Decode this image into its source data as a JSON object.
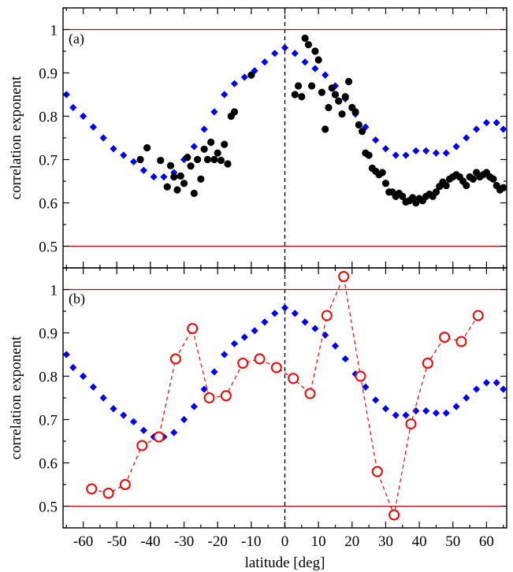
{
  "colors": {
    "model": "#0000ff",
    "data_a": "#000000",
    "data_b": "#ff0000",
    "reference": "#cc0000"
  },
  "chart_data": [
    {
      "type": "scatter",
      "panel_label": "(a)",
      "ylabel": "correlation exponent",
      "xlim": [
        -66,
        66
      ],
      "ylim": [
        0.45,
        1.05
      ],
      "xticks": [
        "-60",
        "-50",
        "-40",
        "-30",
        "-20",
        "-10",
        "0",
        "10",
        "20",
        "30",
        "40",
        "50",
        "60"
      ],
      "yticks": [
        "0.5",
        "0.6",
        "0.7",
        "0.8",
        "0.9",
        "1"
      ],
      "reference_lines_y": [
        0.5,
        1.0
      ],
      "vertical_line_x": 0,
      "series": [
        {
          "style": "blue-diamonds",
          "x": [
            -65,
            -63,
            -60,
            -57,
            -54,
            -51,
            -48,
            -45,
            -42,
            -39,
            -36,
            -33,
            -30,
            -27,
            -24,
            -21,
            -18,
            -15,
            -12,
            -9,
            -6,
            -3,
            0,
            3,
            6,
            9,
            12,
            15,
            18,
            21,
            24,
            27,
            30,
            33,
            36,
            39,
            42,
            45,
            48,
            51,
            54,
            57,
            60,
            63,
            65
          ],
          "y": [
            0.85,
            0.82,
            0.8,
            0.775,
            0.75,
            0.725,
            0.71,
            0.695,
            0.675,
            0.66,
            0.66,
            0.67,
            0.7,
            0.73,
            0.77,
            0.81,
            0.85,
            0.875,
            0.89,
            0.905,
            0.925,
            0.945,
            0.958,
            0.945,
            0.925,
            0.91,
            0.895,
            0.87,
            0.84,
            0.805,
            0.775,
            0.745,
            0.725,
            0.71,
            0.71,
            0.72,
            0.72,
            0.715,
            0.715,
            0.73,
            0.75,
            0.77,
            0.785,
            0.785,
            0.77
          ]
        },
        {
          "style": "black-circles",
          "x": [
            -43,
            -41,
            -37,
            -35,
            -34,
            -33,
            -32,
            -31,
            -30,
            -29,
            -28,
            -27,
            -26,
            -25,
            -24,
            -23,
            -22,
            -21,
            -20,
            -19,
            -18,
            -17,
            -16,
            -15,
            -10,
            3,
            4,
            5,
            6,
            7,
            8,
            9,
            10,
            11,
            12,
            13,
            14,
            15,
            16,
            17,
            18,
            19,
            20,
            21,
            22,
            23,
            24,
            25,
            26,
            27,
            28,
            29,
            30,
            31,
            32,
            33,
            34,
            35,
            36,
            37,
            38,
            39,
            40,
            41,
            42,
            43,
            44,
            45,
            46,
            47,
            48,
            49,
            50,
            51,
            52,
            53,
            54,
            55,
            56,
            57,
            58,
            59,
            60,
            61,
            62,
            63,
            64,
            65
          ],
          "y": [
            0.7,
            0.727,
            0.698,
            0.637,
            0.686,
            0.66,
            0.63,
            0.662,
            0.645,
            0.705,
            0.685,
            0.622,
            0.7,
            0.655,
            0.724,
            0.7,
            0.74,
            0.7,
            0.715,
            0.698,
            0.735,
            0.69,
            0.8,
            0.81,
            0.895,
            0.85,
            0.87,
            0.845,
            0.98,
            0.965,
            0.87,
            0.95,
            0.93,
            0.855,
            0.77,
            0.82,
            0.865,
            0.85,
            0.835,
            0.805,
            0.845,
            0.88,
            0.82,
            0.81,
            0.78,
            0.765,
            0.715,
            0.71,
            0.68,
            0.673,
            0.665,
            0.67,
            0.645,
            0.625,
            0.625,
            0.615,
            0.622,
            0.615,
            0.602,
            0.605,
            0.612,
            0.6,
            0.61,
            0.605,
            0.615,
            0.62,
            0.615,
            0.625,
            0.638,
            0.648,
            0.64,
            0.655,
            0.66,
            0.665,
            0.66,
            0.65,
            0.64,
            0.66,
            0.655,
            0.67,
            0.66,
            0.665,
            0.67,
            0.66,
            0.655,
            0.64,
            0.63,
            0.635
          ]
        }
      ]
    },
    {
      "type": "line",
      "panel_label": "(b)",
      "xlabel": "latitude  [deg]",
      "ylabel": "correlation exponent",
      "xlim": [
        -66,
        66
      ],
      "ylim": [
        0.45,
        1.05
      ],
      "xticks": [
        "-60",
        "-50",
        "-40",
        "-30",
        "-20",
        "-10",
        "0",
        "10",
        "20",
        "30",
        "40",
        "50",
        "60"
      ],
      "yticks": [
        "0.5",
        "0.6",
        "0.7",
        "0.8",
        "0.9",
        "1"
      ],
      "reference_lines_y": [
        0.5,
        1.0
      ],
      "vertical_line_x": 0,
      "series": [
        {
          "style": "blue-diamonds",
          "x": [
            -65,
            -63,
            -60,
            -57,
            -54,
            -51,
            -48,
            -45,
            -42,
            -39,
            -36,
            -33,
            -30,
            -27,
            -24,
            -21,
            -18,
            -15,
            -12,
            -9,
            -6,
            -3,
            0,
            3,
            6,
            9,
            12,
            15,
            18,
            21,
            24,
            27,
            30,
            33,
            36,
            39,
            42,
            45,
            48,
            51,
            54,
            57,
            60,
            63,
            65
          ],
          "y": [
            0.85,
            0.82,
            0.8,
            0.775,
            0.75,
            0.725,
            0.71,
            0.695,
            0.675,
            0.66,
            0.66,
            0.67,
            0.7,
            0.73,
            0.77,
            0.81,
            0.85,
            0.875,
            0.89,
            0.905,
            0.925,
            0.945,
            0.958,
            0.945,
            0.925,
            0.91,
            0.895,
            0.87,
            0.84,
            0.805,
            0.775,
            0.745,
            0.725,
            0.71,
            0.71,
            0.72,
            0.72,
            0.715,
            0.715,
            0.73,
            0.75,
            0.77,
            0.785,
            0.785,
            0.77
          ]
        },
        {
          "style": "red-open-circles-dashed",
          "x": [
            -57.5,
            -52.5,
            -47.5,
            -42.5,
            -37.5,
            -32.5,
            -27.5,
            -22.5,
            -17.5,
            -12.5,
            -7.5,
            -2.5,
            2.5,
            7.5,
            12.5,
            17.5,
            22.5,
            27.5,
            32.5,
            37.5,
            42.5,
            47.5,
            52.5,
            57.5
          ],
          "y": [
            0.54,
            0.53,
            0.55,
            0.64,
            0.66,
            0.84,
            0.91,
            0.75,
            0.755,
            0.83,
            0.84,
            0.82,
            0.795,
            0.76,
            0.94,
            1.03,
            0.8,
            0.58,
            0.48,
            0.69,
            0.83,
            0.89,
            0.88,
            0.94
          ]
        }
      ]
    }
  ]
}
